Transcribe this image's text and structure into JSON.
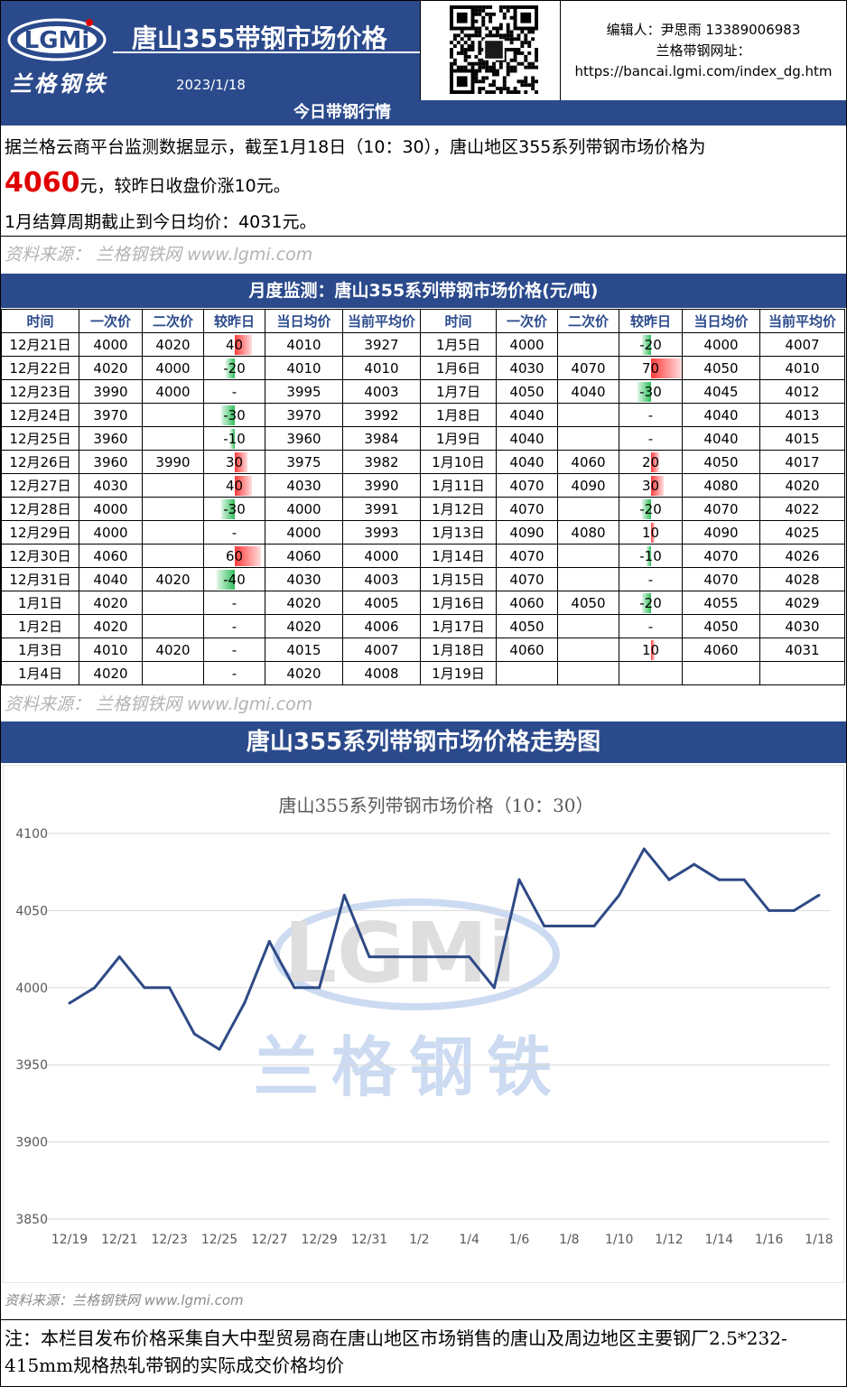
{
  "header": {
    "title": "唐山355带钢市场价格",
    "brand_cn": "兰格钢铁",
    "logo_text": "LGMi",
    "date": "2023/1/18",
    "editor": "编辑人：尹思雨 13389006983",
    "site_label": "兰格带钢网址：",
    "site_url": "https://bancai.lgmi.com/index_dg.htm"
  },
  "today": {
    "bar_title": "今日带钢行情",
    "line1": "据兰格云商平台监测数据显示，截至1月18日（10：30），唐山地区355系列带钢市场价格为",
    "price": "4060",
    "line2_rest": "元，较昨日收盘价涨10元。",
    "line3": "1月结算周期截止到今日均价：4031元。",
    "source": "资料来源： 兰格钢铁网 www.lgmi.com"
  },
  "monthly": {
    "bar_title": "月度监测：唐山355系列带钢市场价格(元/吨)",
    "headers": [
      "时间",
      "一次价",
      "二次价",
      "较昨日",
      "当日均价",
      "当前平均价",
      "时间",
      "一次价",
      "二次价",
      "较昨日",
      "当日均价",
      "当前平均价"
    ],
    "left_rows": [
      [
        "12月21日",
        "4000",
        "4020",
        "40",
        "4010",
        "3927"
      ],
      [
        "12月22日",
        "4020",
        "4000",
        "-20",
        "4010",
        "4010"
      ],
      [
        "12月23日",
        "3990",
        "4000",
        "-",
        "3995",
        "4003"
      ],
      [
        "12月24日",
        "3970",
        "",
        "-30",
        "3970",
        "3992"
      ],
      [
        "12月25日",
        "3960",
        "",
        "-10",
        "3960",
        "3984"
      ],
      [
        "12月26日",
        "3960",
        "3990",
        "30",
        "3975",
        "3982"
      ],
      [
        "12月27日",
        "4030",
        "",
        "40",
        "4030",
        "3990"
      ],
      [
        "12月28日",
        "4000",
        "",
        "-30",
        "4000",
        "3991"
      ],
      [
        "12月29日",
        "4000",
        "",
        "-",
        "4000",
        "3993"
      ],
      [
        "12月30日",
        "4060",
        "",
        "60",
        "4060",
        "4000"
      ],
      [
        "12月31日",
        "4040",
        "4020",
        "-40",
        "4030",
        "4003"
      ],
      [
        "1月1日",
        "4020",
        "",
        "-",
        "4020",
        "4005"
      ],
      [
        "1月2日",
        "4020",
        "",
        "-",
        "4020",
        "4006"
      ],
      [
        "1月3日",
        "4010",
        "4020",
        "-",
        "4015",
        "4007"
      ],
      [
        "1月4日",
        "4020",
        "",
        "-",
        "4020",
        "4008"
      ]
    ],
    "right_rows": [
      [
        "1月5日",
        "4000",
        "",
        "-20",
        "4000",
        "4007"
      ],
      [
        "1月6日",
        "4030",
        "4070",
        "70",
        "4050",
        "4010"
      ],
      [
        "1月7日",
        "4050",
        "4040",
        "-30",
        "4045",
        "4012"
      ],
      [
        "1月8日",
        "4040",
        "",
        "-",
        "4040",
        "4013"
      ],
      [
        "1月9日",
        "4040",
        "",
        "-",
        "4040",
        "4015"
      ],
      [
        "1月10日",
        "4040",
        "4060",
        "20",
        "4050",
        "4017"
      ],
      [
        "1月11日",
        "4070",
        "4090",
        "30",
        "4080",
        "4020"
      ],
      [
        "1月12日",
        "4070",
        "",
        "-20",
        "4070",
        "4022"
      ],
      [
        "1月13日",
        "4090",
        "4080",
        "10",
        "4090",
        "4025"
      ],
      [
        "1月14日",
        "4070",
        "",
        "-10",
        "4070",
        "4026"
      ],
      [
        "1月15日",
        "4070",
        "",
        "-",
        "4070",
        "4028"
      ],
      [
        "1月16日",
        "4060",
        "4050",
        "-20",
        "4055",
        "4029"
      ],
      [
        "1月17日",
        "4050",
        "",
        "-",
        "4050",
        "4030"
      ],
      [
        "1月18日",
        "4060",
        "",
        "10",
        "4060",
        "4031"
      ],
      [
        "1月19日",
        "",
        "",
        "",
        "",
        ""
      ]
    ],
    "source": "资料来源： 兰格钢铁网 www.lgmi.com"
  },
  "trend": {
    "bar_title": "唐山355系列带钢市场价格走势图",
    "source": "资料来源：兰格钢铁网 www.lgmi.com",
    "watermark_logo": "LGMi",
    "watermark_cn": "兰格钢铁"
  },
  "chart_data": {
    "type": "line",
    "title": "唐山355系列带钢市场价格（10：30）",
    "x": [
      "12/19",
      "12/20",
      "12/21",
      "12/22",
      "12/23",
      "12/24",
      "12/25",
      "12/26",
      "12/27",
      "12/28",
      "12/29",
      "12/30",
      "12/31",
      "1/1",
      "1/2",
      "1/3",
      "1/4",
      "1/5",
      "1/6",
      "1/7",
      "1/8",
      "1/9",
      "1/10",
      "1/11",
      "1/12",
      "1/13",
      "1/14",
      "1/15",
      "1/16",
      "1/17",
      "1/18"
    ],
    "xticks": [
      "12/19",
      "12/21",
      "12/23",
      "12/25",
      "12/27",
      "12/29",
      "12/31",
      "1/2",
      "1/4",
      "1/6",
      "1/8",
      "1/10",
      "1/12",
      "1/14",
      "1/16",
      "1/18"
    ],
    "values": [
      3990,
      4000,
      4020,
      4000,
      4000,
      3970,
      3960,
      3990,
      4030,
      4000,
      4000,
      4060,
      4020,
      4020,
      4020,
      4020,
      4020,
      4000,
      4070,
      4040,
      4040,
      4040,
      4060,
      4090,
      4070,
      4080,
      4070,
      4070,
      4050,
      4050,
      4060
    ],
    "ylim": [
      3850,
      4100
    ],
    "yticks": [
      3850,
      3900,
      3950,
      4000,
      4050,
      4100
    ],
    "grid": true,
    "line_color": "#2e4a86"
  },
  "note": "注：本栏目发布价格采集自大中型贸易商在唐山地区市场销售的唐山及周边地区主要钢厂2.5*232-415mm规格热轧带钢的实际成交价格均价"
}
